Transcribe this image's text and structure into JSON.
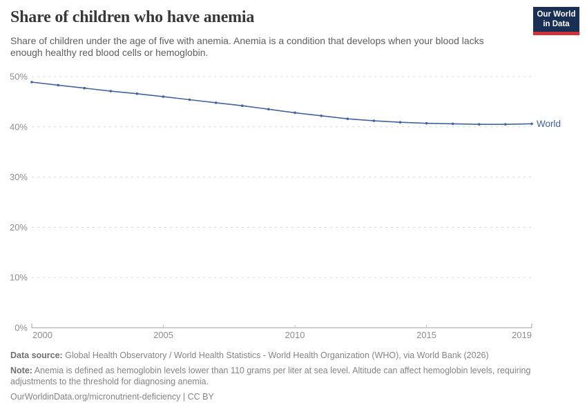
{
  "header": {
    "title": "Share of children who have anemia",
    "logo": {
      "line1": "Our World",
      "line2": "in Data",
      "bg_color": "#1a2f54",
      "bar_color": "#d13239",
      "text_color": "#ffffff"
    }
  },
  "subtitle": "Share of children under the age of five with anemia. Anemia is a condition that develops when your blood lacks enough healthy red blood cells or hemoglobin.",
  "chart_data": {
    "type": "line",
    "title": "Share of children who have anemia",
    "x": [
      2000,
      2001,
      2002,
      2003,
      2004,
      2005,
      2006,
      2007,
      2008,
      2009,
      2010,
      2011,
      2012,
      2013,
      2014,
      2015,
      2016,
      2017,
      2018,
      2019
    ],
    "series": [
      {
        "name": "World",
        "color": "#4262a0",
        "values": [
          48.9,
          48.3,
          47.7,
          47.1,
          46.6,
          46.0,
          45.4,
          44.8,
          44.2,
          43.5,
          42.8,
          42.2,
          41.6,
          41.2,
          40.9,
          40.7,
          40.6,
          40.5,
          40.5,
          40.6
        ]
      }
    ],
    "xlabel": "",
    "ylabel": "",
    "xticks": [
      2000,
      2005,
      2010,
      2015,
      2019
    ],
    "yticks": [
      0,
      10,
      20,
      30,
      40,
      50
    ],
    "ytick_suffix": "%",
    "xlim": [
      2000,
      2019
    ],
    "ylim": [
      0,
      50
    ],
    "grid": "horizontal-dashed",
    "legend_position": "label-at-line-end"
  },
  "footer": {
    "data_source_label": "Data source:",
    "data_source": "Global Health Observatory / World Health Statistics - World Health Organization (WHO), via World Bank (2026)",
    "note_label": "Note:",
    "note": "Anemia is defined as hemoglobin levels lower than 110 grams per liter at sea level. Altitude can affect hemoglobin levels, requiring adjustments to the threshold for diagnosing anemia.",
    "url": "OurWorldinData.org/micronutrient-deficiency | CC BY"
  },
  "theme": {
    "grid_color": "#d8d8d8",
    "axis_color": "#9c9c9c",
    "interior_tick_color": "#c2c2c2",
    "tick_label_color": "#8f8f8f",
    "title_color": "#383838",
    "subtitle_color": "#5e5e5e",
    "footer_color": "#858585"
  }
}
